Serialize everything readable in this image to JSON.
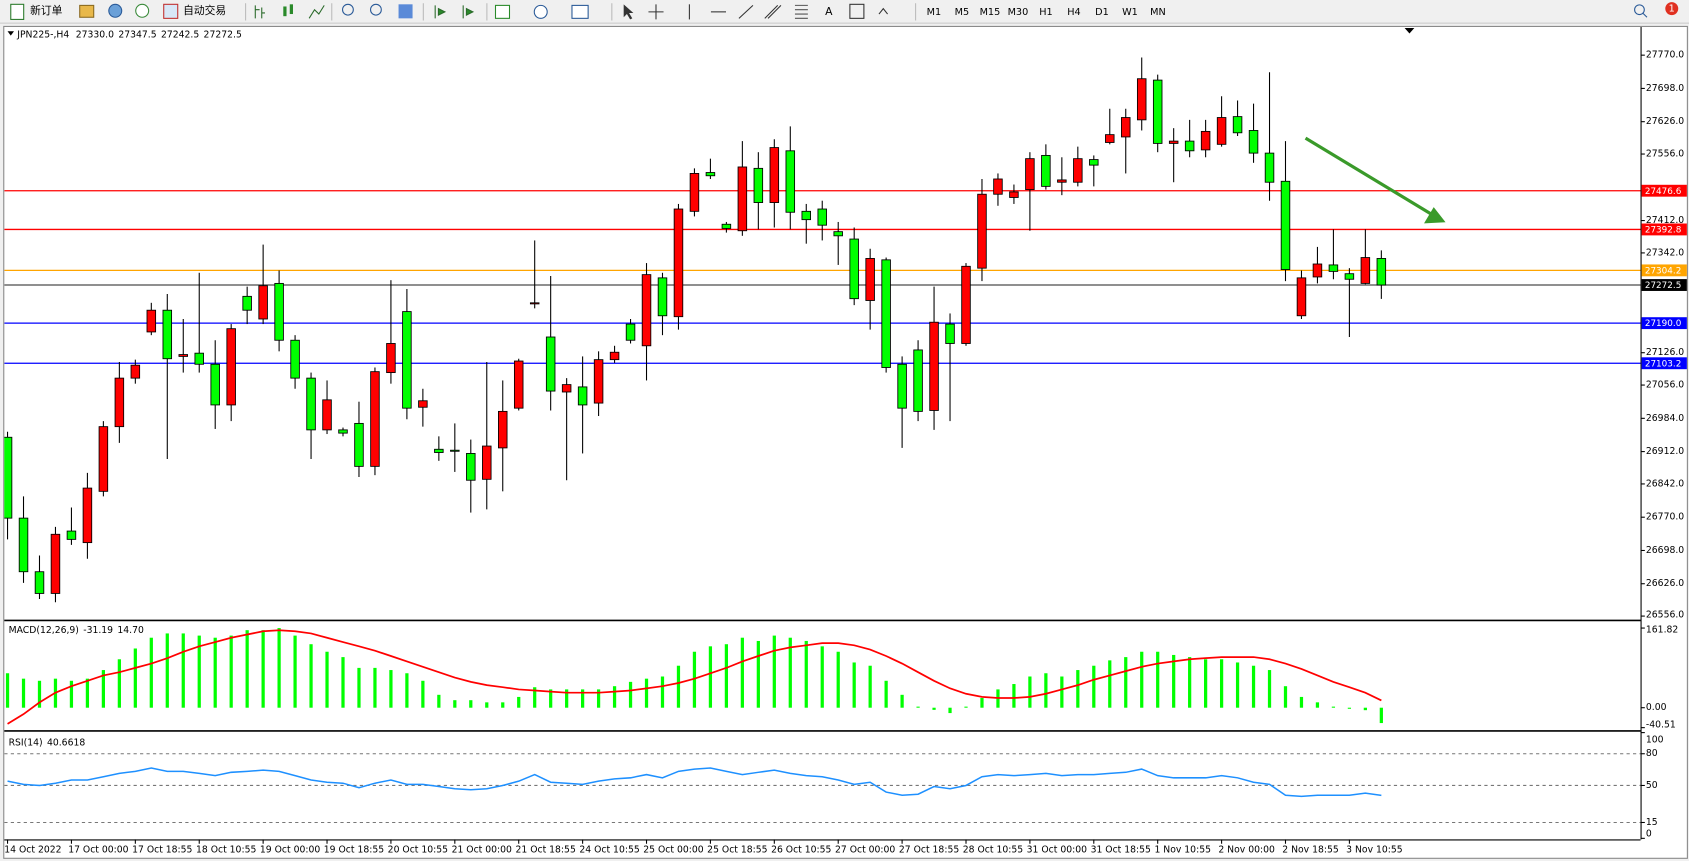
{
  "toolbar": {
    "new_order": "新订单",
    "auto_trading": "自动交易",
    "text_tool": "A",
    "timeframes": [
      "M1",
      "M5",
      "M15",
      "M30",
      "H1",
      "H4",
      "D1",
      "W1",
      "MN"
    ],
    "notification_count": "1"
  },
  "chart_data": [
    {
      "type": "candlestick",
      "title": "JPN225-,H4",
      "title_values": [
        "27330.0",
        "27347.5",
        "27242.5",
        "27272.5"
      ],
      "bull_color": "#ff0000",
      "bear_color": "#00ff00",
      "categories": [
        "14 Oct 2022",
        null,
        null,
        null,
        "17 Oct 00:00",
        null,
        null,
        null,
        "17 Oct 18:55",
        null,
        null,
        null,
        "18 Oct 10:55",
        null,
        null,
        null,
        "19 Oct 00:00",
        null,
        null,
        null,
        "19 Oct 18:55",
        null,
        null,
        null,
        "20 Oct 10:55",
        null,
        null,
        null,
        "21 Oct 00:00",
        null,
        null,
        null,
        "21 Oct 18:55",
        null,
        null,
        null,
        "24 Oct 10:55",
        null,
        null,
        null,
        "25 Oct 00:00",
        null,
        null,
        null,
        "25 Oct 18:55",
        null,
        null,
        null,
        "26 Oct 10:55",
        null,
        null,
        null,
        "27 Oct 00:00",
        null,
        null,
        null,
        "27 Oct 18:55",
        null,
        null,
        null,
        "28 Oct 10:55",
        null,
        null,
        null,
        "31 Oct 00:00",
        null,
        null,
        null,
        "31 Oct 18:55",
        null,
        null,
        null,
        "1 Nov 10:55",
        null,
        null,
        null,
        "2 Nov 00:00",
        null,
        null,
        null,
        "2 Nov 18:55",
        null,
        null,
        null,
        "3 Nov 10:55",
        null,
        null
      ],
      "ohlc": [
        [
          26943,
          26955,
          26722,
          26768
        ],
        [
          26768,
          26815,
          26628,
          26652
        ],
        [
          26652,
          26687,
          26593,
          26605
        ],
        [
          26605,
          26749,
          26586,
          26733
        ],
        [
          26740,
          26791,
          26710,
          26722
        ],
        [
          26715,
          26866,
          26680,
          26833
        ],
        [
          26826,
          26978,
          26815,
          26966
        ],
        [
          26966,
          27106,
          26931,
          27071
        ],
        [
          27071,
          27111,
          27059,
          27099
        ],
        [
          27171,
          27234,
          27164,
          27218
        ],
        [
          27218,
          27253,
          26896,
          27113
        ],
        [
          27118,
          27199,
          27083,
          27122
        ],
        [
          27125,
          27299,
          27083,
          27101
        ],
        [
          27101,
          27153,
          26961,
          27013
        ],
        [
          27013,
          27188,
          26978,
          27178
        ],
        [
          27248,
          27269,
          27188,
          27218
        ],
        [
          27199,
          27360,
          27188,
          27271
        ],
        [
          27276,
          27304,
          27129,
          27153
        ],
        [
          27153,
          27164,
          27048,
          27071
        ],
        [
          27071,
          27083,
          26896,
          26959
        ],
        [
          26959,
          27066,
          26950,
          27024
        ],
        [
          26959,
          26964,
          26945,
          26952
        ],
        [
          26973,
          27020,
          26857,
          26880
        ],
        [
          26880,
          27094,
          26861,
          27085
        ],
        [
          27083,
          27283,
          27059,
          27146
        ],
        [
          27215,
          27264,
          26982,
          27006
        ],
        [
          27008,
          27048,
          26966,
          27022
        ],
        [
          26917,
          26945,
          26892,
          26910
        ],
        [
          26915,
          26973,
          26868,
          26913
        ],
        [
          26908,
          26938,
          26780,
          26850
        ],
        [
          26852,
          27106,
          26787,
          26924
        ],
        [
          26920,
          27066,
          26826,
          26999
        ],
        [
          27006,
          27113,
          27001,
          27108
        ],
        [
          27232,
          27369,
          27222,
          27234
        ],
        [
          27160,
          27292,
          27001,
          27043
        ],
        [
          27041,
          27071,
          26850,
          27057
        ],
        [
          27052,
          27118,
          26908,
          27013
        ],
        [
          27017,
          27129,
          26989,
          27111
        ],
        [
          27111,
          27141,
          27104,
          27127
        ],
        [
          27188,
          27199,
          27146,
          27153
        ],
        [
          27141,
          27320,
          27066,
          27295
        ],
        [
          27288,
          27299,
          27164,
          27206
        ],
        [
          27204,
          27448,
          27176,
          27437
        ],
        [
          27432,
          27525,
          27421,
          27514
        ],
        [
          27516,
          27546,
          27502,
          27509
        ],
        [
          27404,
          27409,
          27386,
          27395
        ],
        [
          27390,
          27584,
          27379,
          27528
        ],
        [
          27525,
          27560,
          27393,
          27451
        ],
        [
          27451,
          27588,
          27397,
          27570
        ],
        [
          27563,
          27616,
          27393,
          27430
        ],
        [
          27432,
          27448,
          27362,
          27414
        ],
        [
          27437,
          27455,
          27369,
          27402
        ],
        [
          27388,
          27409,
          27316,
          27379
        ],
        [
          27372,
          27397,
          27229,
          27243
        ],
        [
          27239,
          27351,
          27176,
          27330
        ],
        [
          27327,
          27332,
          27083,
          27094
        ],
        [
          27101,
          27118,
          26920,
          27006
        ],
        [
          27132,
          27153,
          26978,
          26999
        ],
        [
          27001,
          27269,
          26959,
          27192
        ],
        [
          27188,
          27211,
          26978,
          27146
        ],
        [
          27146,
          27320,
          27141,
          27313
        ],
        [
          27309,
          27502,
          27281,
          27469
        ],
        [
          27469,
          27514,
          27444,
          27502
        ],
        [
          27462,
          27490,
          27448,
          27474
        ],
        [
          27479,
          27560,
          27390,
          27546
        ],
        [
          27553,
          27577,
          27479,
          27486
        ],
        [
          27495,
          27549,
          27467,
          27500
        ],
        [
          27495,
          27572,
          27486,
          27546
        ],
        [
          27544,
          27553,
          27486,
          27532
        ],
        [
          27581,
          27654,
          27577,
          27598
        ],
        [
          27593,
          27654,
          27514,
          27635
        ],
        [
          27630,
          27765,
          27607,
          27719
        ],
        [
          27716,
          27728,
          27560,
          27579
        ],
        [
          27579,
          27612,
          27495,
          27584
        ],
        [
          27584,
          27630,
          27549,
          27563
        ],
        [
          27565,
          27630,
          27549,
          27605
        ],
        [
          27577,
          27681,
          27572,
          27635
        ],
        [
          27637,
          27672,
          27595,
          27602
        ],
        [
          27607,
          27665,
          27537,
          27558
        ],
        [
          27558,
          27733,
          27455,
          27495
        ],
        [
          27497,
          27584,
          27281,
          27306
        ],
        [
          27206,
          27304,
          27199,
          27288
        ],
        [
          27290,
          27355,
          27276,
          27318
        ],
        [
          27316,
          27393,
          27285,
          27302
        ],
        [
          27297,
          27309,
          27160,
          27285
        ],
        [
          27276,
          27393,
          27274,
          27332
        ],
        [
          27330,
          27347.5,
          27242.5,
          27272.5
        ]
      ],
      "ylim": [
        26549,
        27831
      ],
      "yticks": [
        {
          "value": 27770,
          "label": "27770.0"
        },
        {
          "value": 27698,
          "label": "27698.0"
        },
        {
          "value": 27626,
          "label": "27626.0"
        },
        {
          "value": 27556,
          "label": "27556.0"
        },
        {
          "value": 27412,
          "label": "27412.0"
        },
        {
          "value": 27342,
          "label": "27342.0"
        },
        {
          "value": 27126,
          "label": "27126.0"
        },
        {
          "value": 27056,
          "label": "27056.0"
        },
        {
          "value": 26984,
          "label": "26984.0"
        },
        {
          "value": 26912,
          "label": "26912.0"
        },
        {
          "value": 26842,
          "label": "26842.0"
        },
        {
          "value": 26770,
          "label": "26770.0"
        },
        {
          "value": 26698,
          "label": "26698.0"
        },
        {
          "value": 26626,
          "label": "26626.0"
        },
        {
          "value": 26556,
          "label": "26556.0"
        }
      ],
      "levels": [
        {
          "price": 27476.6,
          "color": "#ff0000"
        },
        {
          "price": 27392.8,
          "color": "#ff0000"
        },
        {
          "price": 27304.2,
          "color": "#ffa500"
        },
        {
          "price": 27272.5,
          "color": "#000000"
        },
        {
          "price": {
            "value": 27190,
            "label": "27190.0"
          },
          "color": "#0000ff"
        },
        {
          "price": 27103.2,
          "color": "#0000ff"
        }
      ]
    },
    {
      "type": "macd",
      "title": "MACD(12,26,9)",
      "title_values": [
        "-31.19",
        "14.70"
      ],
      "series": [
        {
          "color": "#00ff00",
          "values": [
            70.0,
            59.0,
            54.7,
            59.0,
            54.7,
            59.0,
            76.5,
            98.4,
            120.3,
            142.2,
            150.9,
            150.9,
            146.5,
            142.2,
            146.5,
            157.5,
            157.5,
            161.8,
            146.5,
            129.0,
            113.7,
            102.8,
            80.9,
            80.9,
            76.5,
            70.0,
            54.7,
            26.2,
            15.3,
            15.3,
            10.9,
            10.9,
            21.9,
            41.6,
            37.2,
            37.2,
            37.2,
            37.2,
            43.7,
            52.5,
            59.0,
            63.4,
            85.3,
            113.7,
            124.7,
            129.0,
            142.2,
            135.6,
            146.5,
            142.2,
            135.6,
            124.7,
            113.7,
            91.9,
            85.3,
            54.7,
            26.2,
            2.2,
            -4.4,
            -10.9,
            2.2,
            19.7,
            37.2,
            48.1,
            63.4,
            70.0,
            63.4,
            76.5,
            85.3,
            96.2,
            102.8,
            113.7,
            113.7,
            107.2,
            102.8,
            98.4,
            98.4,
            91.9,
            85.3,
            76.5,
            43.7,
            21.9,
            10.9,
            2.2,
            -2.2,
            -5.0,
            -31.19
          ]
        },
        {
          "color": "#ff0000",
          "values": [
            -32.8,
            -13.1,
            10.9,
            30.6,
            43.7,
            54.7,
            65.6,
            72.2,
            80.9,
            89.7,
            100.6,
            113.7,
            124.7,
            133.4,
            142.2,
            148.7,
            155.3,
            157.5,
            155.3,
            150.9,
            142.2,
            133.4,
            124.7,
            115.9,
            105.0,
            94.0,
            83.1,
            72.2,
            61.2,
            52.5,
            45.9,
            41.6,
            37.2,
            35.0,
            32.8,
            30.6,
            30.6,
            30.6,
            32.8,
            35.0,
            39.4,
            43.7,
            50.3,
            59.0,
            70.0,
            80.9,
            94.0,
            105.0,
            115.9,
            122.5,
            126.8,
            131.2,
            131.2,
            126.8,
            118.1,
            105.0,
            89.7,
            72.2,
            54.7,
            39.4,
            28.4,
            21.9,
            19.7,
            19.7,
            21.9,
            28.4,
            37.2,
            45.9,
            56.9,
            65.6,
            74.4,
            83.1,
            89.7,
            94.0,
            98.4,
            100.6,
            102.8,
            102.8,
            102.8,
            98.4,
            89.7,
            78.7,
            65.6,
            52.5,
            41.6,
            30.6,
            14.7
          ]
        }
      ],
      "ylim": [
        -44,
        173
      ],
      "yticks": [
        161.82,
        {
          "value": 0,
          "label": "0.00"
        },
        -40.51
      ]
    },
    {
      "type": "line",
      "title": "RSI(14)",
      "title_values": [
        "40.6618"
      ],
      "color": "#1e90ff",
      "values": [
        54.1,
        51.0,
        50.0,
        52.1,
        55.2,
        55.2,
        58.3,
        61.4,
        63.4,
        66.5,
        63.4,
        63.4,
        61.4,
        59.3,
        62.4,
        63.4,
        64.5,
        63.4,
        59.3,
        55.2,
        53.1,
        52.1,
        47.9,
        52.1,
        55.2,
        51.0,
        51.0,
        49.0,
        46.9,
        45.9,
        46.9,
        50.0,
        54.1,
        60.3,
        53.1,
        52.1,
        51.0,
        54.1,
        56.2,
        57.2,
        60.3,
        57.2,
        63.4,
        65.5,
        66.5,
        63.4,
        60.3,
        62.4,
        64.5,
        61.4,
        59.3,
        58.3,
        55.2,
        51.0,
        53.1,
        43.8,
        40.7,
        41.7,
        49.0,
        46.9,
        50.0,
        58.3,
        60.3,
        59.3,
        60.3,
        61.4,
        59.3,
        60.3,
        60.3,
        61.4,
        62.4,
        65.5,
        59.3,
        57.2,
        57.2,
        57.2,
        59.3,
        57.2,
        53.1,
        51.0,
        40.7,
        39.7,
        40.7,
        40.7,
        40.7,
        42.8,
        40.6618
      ],
      "ylim": [
        0,
        100
      ],
      "yticks": [
        100,
        80,
        50,
        15,
        0
      ],
      "levels": [
        80,
        50,
        15
      ]
    }
  ]
}
